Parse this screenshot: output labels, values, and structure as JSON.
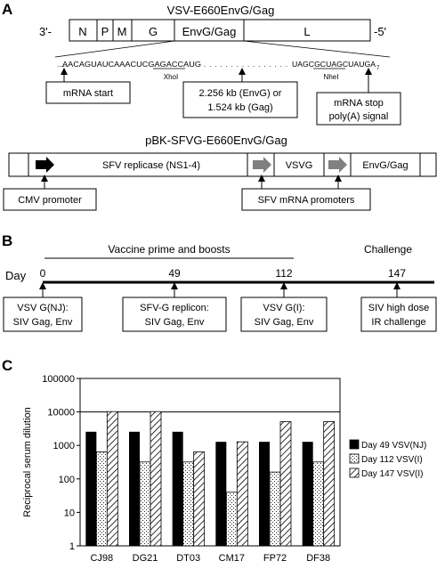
{
  "panel_a": {
    "letter": "A",
    "genome_title": "VSV-E660EnvG/Gag",
    "end_left": "3'-",
    "end_right": "-5'",
    "genes": [
      "N",
      "P",
      "M",
      "G",
      "EnvG/Gag",
      "L"
    ],
    "seq_left": "AACAGUAUCAAACUCGAGACCAUG",
    "seq_dots": "................",
    "seq_right": "UAGCGCUAGCUAUGA",
    "seq_tail": "7",
    "site_xhoi": "XhoI",
    "site_nhei": "NheI",
    "callout_mrna_start": "mRNA start",
    "callout_insert_line1": "2.256 kb (EnvG) or",
    "callout_insert_line2": "1.524 kb (Gag)",
    "callout_stop_line1": "mRNA stop",
    "callout_stop_line2": "poly(A) signal",
    "replicon_title": "pBK-SFVG-E660EnvG/Gag",
    "replicon_segments": [
      "SFV replicase (NS1-4)",
      "VSVG",
      "EnvG/Gag"
    ],
    "callout_cmv": "CMV promoter",
    "callout_sfv": "SFV mRNA promoters"
  },
  "panel_b": {
    "letter": "B",
    "prime_label": "Vaccine prime and boosts",
    "challenge_label": "Challenge",
    "day_label": "Day",
    "timepoints": [
      {
        "day": "0",
        "line1": "VSV G(NJ):",
        "line2": "SIV Gag, Env"
      },
      {
        "day": "49",
        "line1": "SFV-G replicon:",
        "line2": "SIV Gag, Env"
      },
      {
        "day": "112",
        "line1": "VSV G(I):",
        "line2": "SIV Gag, Env"
      },
      {
        "day": "147",
        "line1": "SIV high dose",
        "line2": "IR challenge"
      }
    ]
  },
  "panel_c": {
    "letter": "C"
  },
  "chart_data": {
    "type": "bar",
    "title": "",
    "xlabel": "",
    "ylabel": "Reciprocal serum dilution",
    "yscale": "log",
    "ylim": [
      1,
      100000
    ],
    "ytick_labels": [
      "1",
      "10",
      "100",
      "1000",
      "10000",
      "100000"
    ],
    "categories": [
      "CJ98",
      "DG21",
      "DT03",
      "CM17",
      "FP72",
      "DF38"
    ],
    "series": [
      {
        "name": "Day 49 VSV(NJ)",
        "values": [
          2560,
          2560,
          2560,
          1280,
          1280,
          1280
        ]
      },
      {
        "name": "Day 112 VSV(I)",
        "values": [
          640,
          320,
          320,
          40,
          160,
          320
        ]
      },
      {
        "name": "Day 147 VSV(I)",
        "values": [
          10240,
          10240,
          640,
          1280,
          5120,
          5120
        ]
      }
    ],
    "legend_position": "right",
    "grid": false,
    "colors": {
      "series_0": "#000000",
      "series_1": "#ffffff",
      "series_2": "#ffffff",
      "frame": "#000000"
    }
  }
}
